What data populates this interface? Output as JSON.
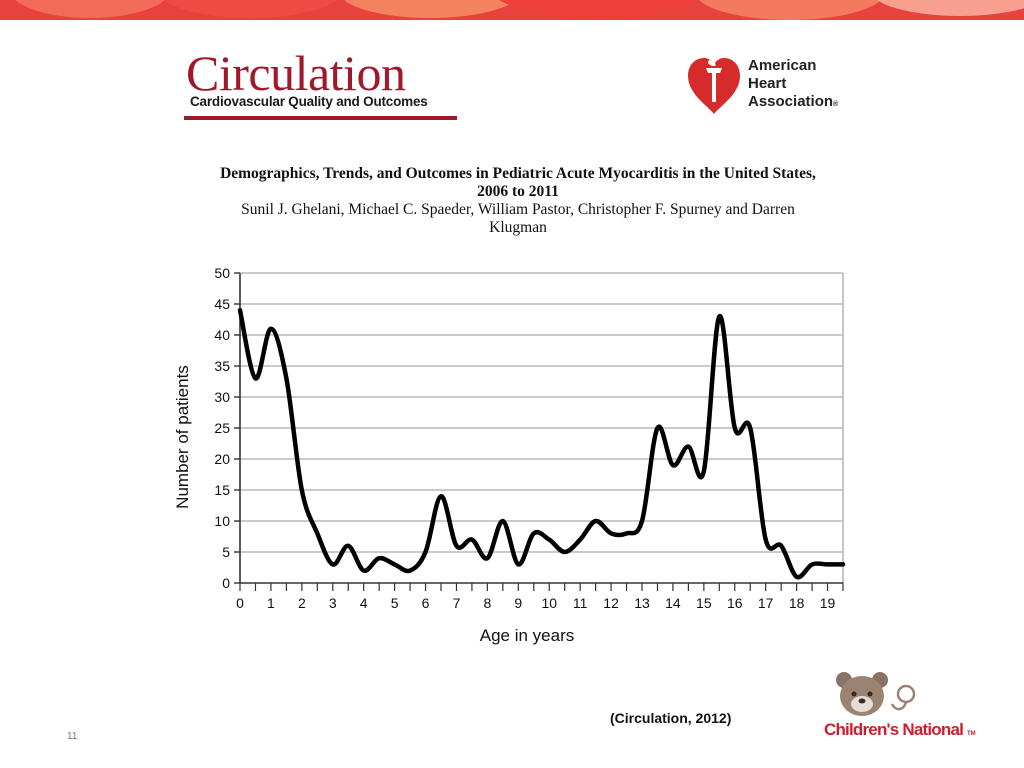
{
  "journal_logo": {
    "title": "Circulation",
    "subtitle": "Cardiovascular Quality and Outcomes"
  },
  "aha_logo": {
    "line1": "American",
    "line2": "Heart",
    "line3": "Association",
    "reg": "®"
  },
  "paper": {
    "title_line1": "Demographics, Trends, and Outcomes in Pediatric Acute Myocarditis in the United States,",
    "title_line2": "2006 to 2011",
    "authors_line1": "Sunil J. Ghelani, Michael C. Spaeder, William Pastor, Christopher F. Spurney and Darren",
    "authors_line2": "Klugman"
  },
  "chart_data": {
    "type": "line",
    "xlabel": "Age in years",
    "ylabel": "Number of patients",
    "xlim": [
      0,
      19.5
    ],
    "ylim": [
      0,
      50
    ],
    "x_ticks": [
      0,
      1,
      2,
      3,
      4,
      5,
      6,
      7,
      8,
      9,
      10,
      11,
      12,
      13,
      14,
      15,
      16,
      17,
      18,
      19
    ],
    "y_ticks": [
      0,
      5,
      10,
      15,
      20,
      25,
      30,
      35,
      40,
      45,
      50
    ],
    "grid": true,
    "series": [
      {
        "x": [
          0,
          0.5,
          1,
          1.5,
          2,
          2.5,
          3,
          3.5,
          4,
          4.5,
          5,
          5.5,
          6,
          6.5,
          7,
          7.5,
          8,
          8.5,
          9,
          9.5,
          10,
          10.5,
          11,
          11.5,
          12,
          12.5,
          13,
          13.5,
          14,
          14.5,
          15,
          15.5,
          16,
          16.5,
          17,
          17.5,
          18,
          18.5,
          19,
          19.5
        ],
        "values": [
          44,
          33,
          41,
          33,
          15,
          8,
          3,
          6,
          2,
          4,
          3,
          2,
          5,
          14,
          6,
          7,
          4,
          10,
          3,
          8,
          7,
          5,
          7,
          10,
          8,
          8,
          10,
          25,
          19,
          22,
          18,
          43,
          25,
          25,
          7,
          6,
          1,
          3,
          3,
          3
        ]
      }
    ]
  },
  "footer": {
    "citation": "(Circulation, 2012)",
    "slide_number": "11"
  },
  "cn_logo": {
    "name": "Children's National",
    "tm": "TM"
  }
}
